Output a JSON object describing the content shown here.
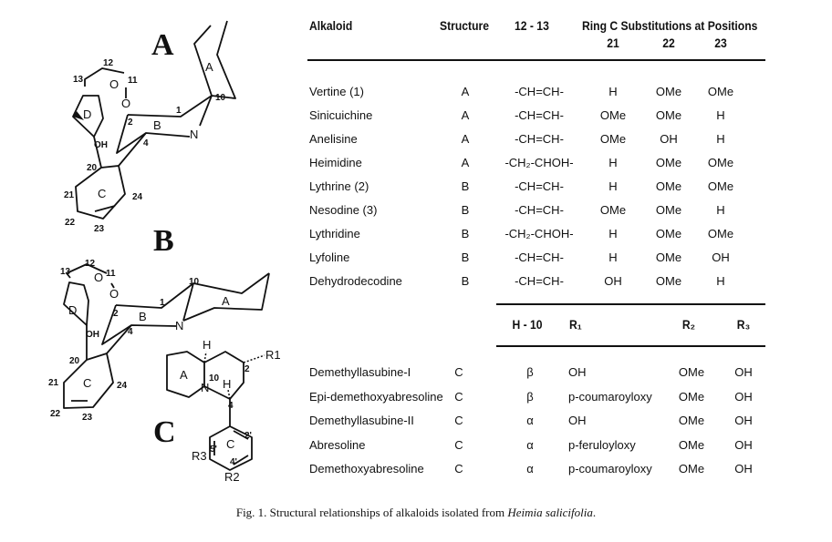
{
  "structures": {
    "A": {
      "title": "A",
      "labels": {
        "c12": "12",
        "c13": "13",
        "o_carbonyl": "O",
        "c11": "11",
        "o_ester": "O",
        "c1": "1",
        "c10": "10",
        "c2": "2",
        "ring_b": "B",
        "n": "N",
        "c4": "4",
        "oh": "OH",
        "ring_d": "D",
        "c20": "20",
        "ring_c": "C",
        "c21": "21",
        "c24": "24",
        "c22": "22",
        "c23": "23",
        "ring_a": "A"
      }
    },
    "B": {
      "title": "B",
      "labels": {
        "c12": "12",
        "c13": "13",
        "o_carbonyl": "O",
        "c11": "11",
        "o_ester": "O",
        "c10": "10",
        "ring_a": "A",
        "c1": "1",
        "c2": "2",
        "ring_b": "B",
        "n": "N",
        "c4": "4",
        "ring_d": "D",
        "oh": "OH",
        "c20": "20",
        "c21": "21",
        "ring_c": "C",
        "c24": "24",
        "c22": "22",
        "c23": "23"
      }
    },
    "C": {
      "title": "C",
      "labels": {
        "h10": "H",
        "r1": "R1",
        "ring_a": "A",
        "c10": "10",
        "c2": "2",
        "n": "N",
        "h4": "H",
        "c4": "4",
        "ring_c": "C",
        "c2p": "2'",
        "c5p": "5'",
        "r3": "R3",
        "c4p": "4'",
        "r2": "R2"
      }
    }
  },
  "table1": {
    "headers": {
      "alkaloid": "Alkaloid",
      "structure": "Structure",
      "bond": "12 - 13",
      "ring_c": "Ring C Substitutions at Positions",
      "p21": "21",
      "p22": "22",
      "p23": "23"
    },
    "rows": [
      {
        "name": "Vertine (1)",
        "structure": "A",
        "bond": "-CH=CH-",
        "p21": "H",
        "p22": "OMe",
        "p23": "OMe"
      },
      {
        "name": "Sinicuichine",
        "structure": "A",
        "bond": "-CH=CH-",
        "p21": "OMe",
        "p22": "OMe",
        "p23": "H"
      },
      {
        "name": "Anelisine",
        "structure": "A",
        "bond": "-CH=CH-",
        "p21": "OMe",
        "p22": "OH",
        "p23": "H"
      },
      {
        "name": "Heimidine",
        "structure": "A",
        "bond": "-CH₂-CHOH-",
        "p21": "H",
        "p22": "OMe",
        "p23": "OMe"
      },
      {
        "name": "Lythrine (2)",
        "structure": "B",
        "bond": "-CH=CH-",
        "p21": "H",
        "p22": "OMe",
        "p23": "OMe"
      },
      {
        "name": "Nesodine (3)",
        "structure": "B",
        "bond": "-CH=CH-",
        "p21": "OMe",
        "p22": "OMe",
        "p23": "H"
      },
      {
        "name": "Lythridine",
        "structure": "B",
        "bond": "-CH₂-CHOH-",
        "p21": "H",
        "p22": "OMe",
        "p23": "OMe"
      },
      {
        "name": "Lyfoline",
        "structure": "B",
        "bond": "-CH=CH-",
        "p21": "H",
        "p22": "OMe",
        "p23": "OH"
      },
      {
        "name": "Dehydrodecodine",
        "structure": "B",
        "bond": "-CH=CH-",
        "p21": "OH",
        "p22": "OMe",
        "p23": "H"
      }
    ]
  },
  "table2": {
    "headers": {
      "h10": "H - 10",
      "r1": "R₁",
      "r2": "R₂",
      "r3": "R₃"
    },
    "rows": [
      {
        "name": "Demethyllasubine-I",
        "structure": "C",
        "h10": "β",
        "r1": "OH",
        "r2": "OMe",
        "r3": "OH"
      },
      {
        "name": "Epi-demethoxyabresoline",
        "structure": "C",
        "h10": "β",
        "r1": "p-coumaroyloxy",
        "r2": "OMe",
        "r3": "OH"
      },
      {
        "name": "Demethyllasubine-II",
        "structure": "C",
        "h10": "α",
        "r1": "OH",
        "r2": "OMe",
        "r3": "OH"
      },
      {
        "name": "Abresoline",
        "structure": "C",
        "h10": "α",
        "r1": "p-feruloyloxy",
        "r2": "OMe",
        "r3": "OH"
      },
      {
        "name": "Demethoxyabresoline",
        "structure": "C",
        "h10": "α",
        "r1": "p-coumaroyloxy",
        "r2": "OMe",
        "r3": "OH"
      }
    ]
  },
  "caption": {
    "prefix": "Fig. 1. Structural relationships of alkaloids isolated from ",
    "species": "Heimia salicifolia",
    "suffix": "."
  }
}
